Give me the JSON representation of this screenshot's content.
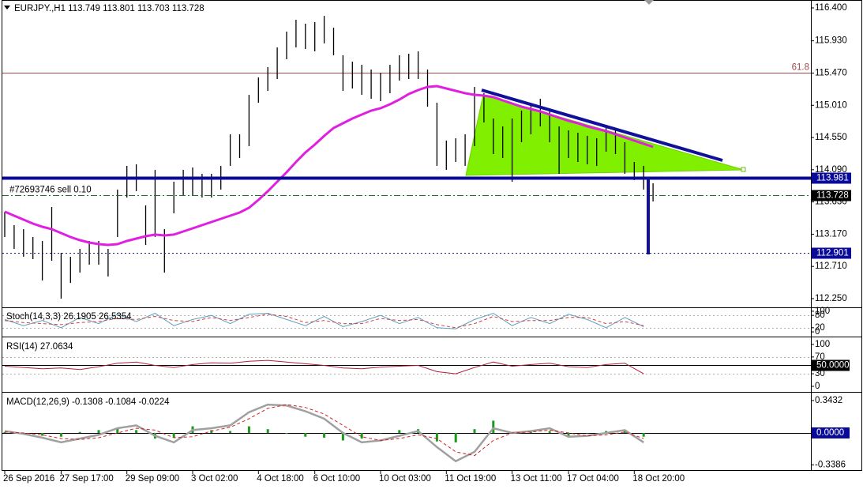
{
  "chart_data": [
    {
      "type": "ohlc",
      "title": "EURJPY.,H1  113.749 113.801 113.703 113.728",
      "categories": [
        "26 Sep 2016",
        null,
        null,
        null,
        null,
        null,
        "27 Sep 17:00",
        null,
        null,
        null,
        null,
        null,
        null,
        "29 Sep 09:00",
        null,
        null,
        null,
        null,
        null,
        null,
        "3 Oct 02:00",
        null,
        null,
        null,
        null,
        null,
        null,
        "4 Oct 18:00",
        null,
        null,
        null,
        null,
        null,
        "6 Oct 10:00",
        null,
        null,
        null,
        null,
        null,
        null,
        "10 Oct 03:00",
        null,
        null,
        null,
        null,
        null,
        null,
        "11 Oct 19:00",
        null,
        null,
        null,
        null,
        null,
        null,
        "13 Oct 11:00",
        null,
        null,
        null,
        null,
        null,
        "17 Oct 04:00",
        null,
        null,
        null,
        null,
        null,
        null,
        "18 Oct 20:00",
        null,
        null
      ],
      "color": "#000000",
      "high": [
        113.491,
        113.299,
        113.242,
        113.13,
        113.073,
        113.558,
        112.904,
        112.848,
        112.96,
        113.073,
        113.073,
        112.96,
        113.807,
        114.145,
        114.167,
        113.581,
        114.088,
        113.242,
        113.919,
        114.088,
        114.122,
        114.032,
        114.032,
        114.145,
        114.596,
        114.596,
        115.16,
        115.408,
        115.554,
        115.836,
        116.062,
        116.231,
        116.175,
        116.197,
        116.287,
        116.118,
        115.724,
        115.633,
        115.588,
        115.521,
        115.475,
        115.588,
        115.724,
        115.746,
        115.78,
        115.521,
        115.047,
        114.506,
        114.539,
        114.596,
        115.272,
        115.182,
        114.821,
        114.709,
        114.821,
        114.934,
        115.047,
        115.103,
        114.934,
        114.709,
        114.652,
        114.618,
        114.573,
        114.539,
        114.709,
        114.686,
        114.483,
        114.201,
        114.145,
        113.897
      ],
      "low": [
        113.13,
        112.96,
        112.848,
        112.814,
        112.509,
        112.791,
        112.25,
        112.475,
        112.622,
        112.735,
        112.735,
        112.566,
        113.13,
        113.693,
        113.784,
        113.017,
        113.13,
        112.622,
        113.468,
        113.716,
        113.716,
        113.693,
        113.693,
        113.807,
        114.145,
        114.257,
        114.427,
        115.047,
        115.216,
        115.385,
        115.667,
        115.836,
        115.814,
        115.78,
        115.893,
        115.724,
        115.216,
        115.25,
        115.16,
        115.103,
        115.069,
        115.182,
        115.363,
        115.385,
        115.385,
        114.99,
        114.145,
        114.088,
        114.201,
        114.145,
        114.427,
        114.765,
        114.314,
        114.257,
        113.919,
        114.483,
        114.596,
        114.709,
        114.483,
        114.032,
        114.257,
        114.201,
        114.167,
        114.145,
        114.348,
        114.314,
        114.032,
        113.942,
        113.807,
        113.637
      ],
      "ma": {
        "color": "#e020e0",
        "values": [
          113.491,
          113.434,
          113.378,
          113.321,
          113.276,
          113.242,
          113.186,
          113.13,
          113.084,
          113.051,
          113.028,
          113.017,
          113.028,
          113.073,
          113.107,
          113.141,
          113.164,
          113.152,
          113.164,
          113.209,
          113.254,
          113.299,
          113.344,
          113.389,
          113.434,
          113.479,
          113.547,
          113.66,
          113.784,
          113.919,
          114.054,
          114.201,
          114.336,
          114.449,
          114.573,
          114.686,
          114.754,
          114.821,
          114.878,
          114.934,
          114.968,
          115.024,
          115.092,
          115.171,
          115.227,
          115.272,
          115.284,
          115.25,
          115.216,
          115.182,
          115.16,
          115.148,
          115.126,
          115.081,
          115.036,
          114.99,
          114.957,
          114.923,
          114.878,
          114.833,
          114.788,
          114.754,
          114.709,
          114.675,
          114.641,
          114.596,
          114.551,
          114.506,
          114.461,
          114.416
        ]
      },
      "ylim": [
        112.137,
        116.513
      ],
      "yticks": [
        {
          "value": 116.4,
          "label": "116.400"
        },
        {
          "value": 115.93,
          "label": "115.930"
        },
        {
          "value": 115.47,
          "label": "115.470"
        },
        {
          "value": 115.01,
          "label": "115.010"
        },
        {
          "value": 114.55,
          "label": "114.550"
        },
        {
          "value": 114.09,
          "label": "114.090"
        },
        {
          "value": 113.63,
          "label": "113.630"
        },
        {
          "value": 113.17,
          "label": "113.170"
        },
        {
          "value": 112.71,
          "label": "112.710"
        },
        {
          "value": 112.25,
          "label": "112.250"
        }
      ],
      "fib": [
        {
          "label": "61.8",
          "value": 115.47,
          "color": "#a04848"
        }
      ],
      "hlines": [
        {
          "value": 113.981,
          "color": "#0a0a9a",
          "box": "#0a0a9a",
          "style": "solid"
        },
        {
          "value": 113.728,
          "label": "#72693746 sell 0.10",
          "color": "#1a7a1a",
          "box": "#000000",
          "style": "dashdot"
        },
        {
          "value": 112.901,
          "color": "#1a1a7a",
          "box": "#0a0a9a",
          "style": "dotted"
        }
      ]
    },
    {
      "type": "line",
      "title": "Stoch(14,3,3) 26.1905 26.5354",
      "ylim": [
        -15,
        115
      ],
      "yticks": [
        0,
        20,
        80,
        100
      ],
      "levels": [
        20,
        80
      ],
      "series": [
        {
          "color": "#5fa0c0",
          "style": "solid",
          "values": [
            60,
            30,
            55,
            20,
            70,
            40,
            85,
            50,
            90,
            30,
            60,
            80,
            40,
            85,
            90,
            60,
            30,
            75,
            25,
            50,
            80,
            40,
            70,
            20,
            15,
            60,
            90,
            30,
            70,
            40,
            85,
            60,
            20,
            70,
            25
          ]
        },
        {
          "color": "#d04040",
          "style": "dashed",
          "values": [
            55,
            45,
            40,
            35,
            45,
            50,
            65,
            60,
            75,
            55,
            50,
            70,
            55,
            70,
            85,
            75,
            45,
            55,
            40,
            40,
            65,
            55,
            60,
            35,
            20,
            40,
            75,
            50,
            55,
            55,
            70,
            70,
            40,
            50,
            30
          ]
        }
      ]
    },
    {
      "type": "line",
      "title": "RSI(14) 27.0634",
      "ylim": [
        -9.4,
        115
      ],
      "yticks": [
        0,
        30,
        {
          "value": 50,
          "label": "50.0000",
          "box": "#000000"
        },
        70,
        100
      ],
      "levels": [
        30,
        50,
        70
      ],
      "series": [
        {
          "color": "#b02040",
          "style": "solid",
          "values": [
            48,
            45,
            42,
            44,
            40,
            47,
            55,
            58,
            50,
            45,
            52,
            56,
            55,
            60,
            62,
            58,
            54,
            50,
            44,
            42,
            46,
            48,
            50,
            35,
            30,
            45,
            58,
            48,
            52,
            55,
            47,
            45,
            52,
            55,
            30
          ]
        }
      ]
    },
    {
      "type": "line",
      "title": "MACD(12,26,9) -0.1308 -0.1084 -0.0224",
      "ylim": [
        -0.385,
        0.418
      ],
      "yticks": [
        0.3432,
        {
          "value": 0,
          "label": "0.0000",
          "box": "#0a0a9a"
        },
        -0.3386
      ],
      "levels": [
        0
      ],
      "histogram": {
        "color": "#1a9a1a",
        "values": [
          0.01,
          -0.01,
          -0.03,
          -0.04,
          0.01,
          0.03,
          0.05,
          0.03,
          -0.06,
          -0.05,
          0.07,
          0.03,
          0.02,
          0.07,
          0.04,
          -0.01,
          -0.04,
          -0.05,
          -0.08,
          -0.06,
          0.0,
          0.03,
          0.04,
          -0.09,
          -0.1,
          0.04,
          0.13,
          0.0,
          0.01,
          0.02,
          -0.04,
          0.0,
          0.02,
          0.02,
          -0.04
        ]
      },
      "series": [
        {
          "color": "#a0a0a0",
          "style": "thick",
          "values": [
            0.02,
            -0.01,
            -0.05,
            -0.1,
            -0.06,
            -0.02,
            0.05,
            0.08,
            -0.03,
            -0.1,
            0.03,
            0.05,
            0.08,
            0.22,
            0.3,
            0.29,
            0.23,
            0.15,
            0.0,
            -0.1,
            -0.08,
            -0.03,
            0.02,
            -0.15,
            -0.3,
            -0.2,
            0.05,
            0.0,
            0.02,
            0.05,
            -0.04,
            -0.03,
            0.0,
            0.03,
            -0.1
          ]
        },
        {
          "color": "#d02020",
          "style": "dashed",
          "values": [
            0.01,
            0.0,
            -0.02,
            -0.06,
            -0.07,
            -0.05,
            0.0,
            0.05,
            0.03,
            -0.05,
            -0.04,
            0.02,
            0.06,
            0.15,
            0.26,
            0.3,
            0.27,
            0.2,
            0.08,
            -0.04,
            -0.08,
            -0.06,
            -0.02,
            -0.06,
            -0.2,
            -0.24,
            -0.08,
            0.0,
            0.01,
            0.03,
            0.0,
            -0.03,
            -0.02,
            0.01,
            -0.06
          ]
        }
      ]
    }
  ]
}
